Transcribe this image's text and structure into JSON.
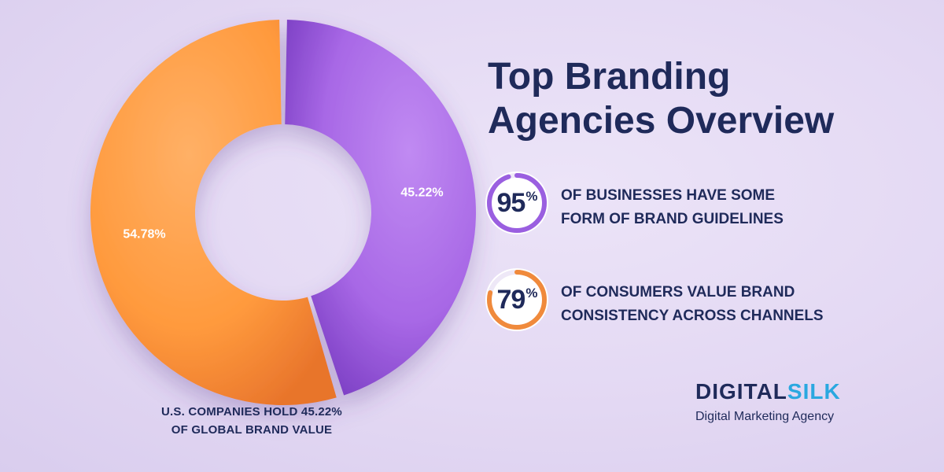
{
  "title": {
    "line1": "Top Branding",
    "line2": "Agencies Overview"
  },
  "chart_data": {
    "type": "pie",
    "series": [
      {
        "label": "54.78%",
        "value": 54.78,
        "color": "#ff9a3d"
      },
      {
        "label": "45.22%",
        "value": 45.22,
        "color": "#a868e6"
      }
    ]
  },
  "caption": {
    "line1": "U.S. COMPANIES HOLD 45.22%",
    "line2": "OF GLOBAL BRAND VALUE"
  },
  "stats": [
    {
      "value": "95",
      "unit": "%",
      "fraction": 0.95,
      "line1": "OF BUSINESSES HAVE SOME",
      "line2": "FORM OF BRAND GUIDELINES"
    },
    {
      "value": "79",
      "unit": "%",
      "fraction": 0.79,
      "line1": "OF CONSUMERS VALUE BRAND",
      "line2": "CONSISTENCY ACROSS CHANNELS"
    }
  ],
  "logo": {
    "brand_part1": "DIGITAL",
    "brand_part2": "SILK",
    "tagline": "Digital Marketing Agency"
  },
  "colors": {
    "navy": "#1f2a5a",
    "orange": "#ff9a3d",
    "purple": "#a868e6",
    "accent_blue": "#2aa8e0"
  }
}
